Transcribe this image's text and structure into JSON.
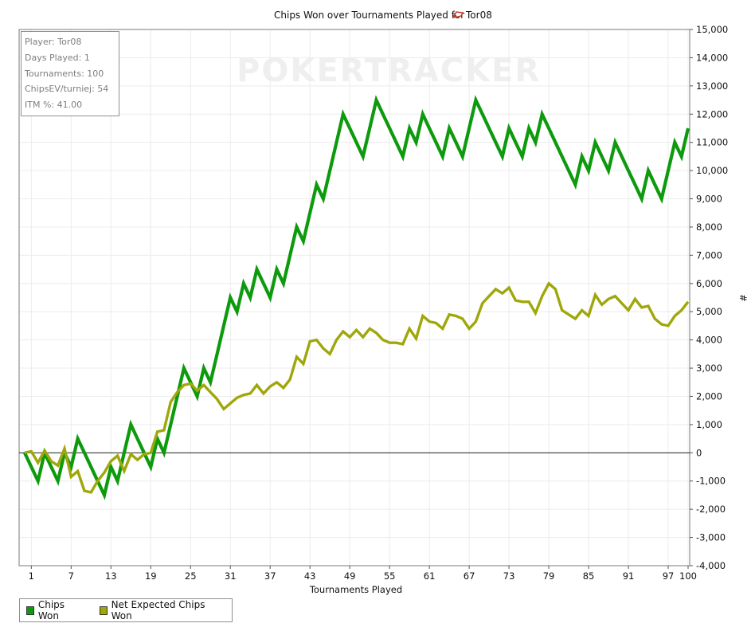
{
  "title": "Chips Won over Tournaments Played for",
  "player_name": "Tor08",
  "watermark": "POKERTRACKER",
  "stats": [
    "Player: Tor08",
    "Days Played: 1",
    "Tournaments: 100",
    "ChipsEV/turniej: 54",
    "ITM %: 41.00"
  ],
  "legend": [
    {
      "label": "Chips Won",
      "color": "#0d9a0d"
    },
    {
      "label": "Net Expected Chips Won",
      "color": "#9fa70b"
    }
  ],
  "chart_data": {
    "type": "line",
    "xlabel": "Tournaments Played",
    "ylabel": "#",
    "xlim": [
      0,
      100
    ],
    "ylim": [
      -4000,
      15000
    ],
    "x_ticks": [
      1,
      7,
      13,
      19,
      25,
      31,
      37,
      43,
      49,
      55,
      61,
      67,
      73,
      79,
      85,
      91,
      97,
      100
    ],
    "y_ticks": [
      -4000,
      -3000,
      -2000,
      -1000,
      0,
      1000,
      2000,
      3000,
      4000,
      5000,
      6000,
      7000,
      8000,
      9000,
      10000,
      11000,
      12000,
      13000,
      14000,
      15000
    ],
    "y_tick_labels": [
      "-4,000",
      "-3,000",
      "-2,000",
      "-1,000",
      "0",
      "1,000",
      "2,000",
      "3,000",
      "4,000",
      "5,000",
      "6,000",
      "7,000",
      "8,000",
      "9,000",
      "10,000",
      "11,000",
      "12,000",
      "13,000",
      "14,000",
      "15,000"
    ],
    "series": [
      {
        "name": "Chips Won",
        "color": "#0d9a0d",
        "points": [
          [
            0,
            0
          ],
          [
            1,
            -500
          ],
          [
            2,
            -1000
          ],
          [
            3,
            0
          ],
          [
            4,
            -500
          ],
          [
            5,
            -1000
          ],
          [
            6,
            0
          ],
          [
            7,
            -500
          ],
          [
            8,
            500
          ],
          [
            9,
            0
          ],
          [
            10,
            -500
          ],
          [
            11,
            -1000
          ],
          [
            12,
            -1500
          ],
          [
            13,
            -500
          ],
          [
            14,
            -1000
          ],
          [
            15,
            0
          ],
          [
            16,
            1000
          ],
          [
            17,
            500
          ],
          [
            18,
            0
          ],
          [
            19,
            -500
          ],
          [
            20,
            500
          ],
          [
            21,
            0
          ],
          [
            22,
            1000
          ],
          [
            23,
            2000
          ],
          [
            24,
            3000
          ],
          [
            25,
            2500
          ],
          [
            26,
            2000
          ],
          [
            27,
            3000
          ],
          [
            28,
            2500
          ],
          [
            29,
            3500
          ],
          [
            30,
            4500
          ],
          [
            31,
            5500
          ],
          [
            32,
            5000
          ],
          [
            33,
            6000
          ],
          [
            34,
            5500
          ],
          [
            35,
            6500
          ],
          [
            36,
            6000
          ],
          [
            37,
            5500
          ],
          [
            38,
            6500
          ],
          [
            39,
            6000
          ],
          [
            40,
            7000
          ],
          [
            41,
            8000
          ],
          [
            42,
            7500
          ],
          [
            43,
            8500
          ],
          [
            44,
            9500
          ],
          [
            45,
            9000
          ],
          [
            46,
            10000
          ],
          [
            47,
            11000
          ],
          [
            48,
            12000
          ],
          [
            49,
            11500
          ],
          [
            50,
            11000
          ],
          [
            51,
            10500
          ],
          [
            52,
            11500
          ],
          [
            53,
            12500
          ],
          [
            54,
            12000
          ],
          [
            55,
            11500
          ],
          [
            56,
            11000
          ],
          [
            57,
            10500
          ],
          [
            58,
            11500
          ],
          [
            59,
            11000
          ],
          [
            60,
            12000
          ],
          [
            61,
            11500
          ],
          [
            62,
            11000
          ],
          [
            63,
            10500
          ],
          [
            64,
            11500
          ],
          [
            65,
            11000
          ],
          [
            66,
            10500
          ],
          [
            67,
            11500
          ],
          [
            68,
            12500
          ],
          [
            69,
            12000
          ],
          [
            70,
            11500
          ],
          [
            71,
            11000
          ],
          [
            72,
            10500
          ],
          [
            73,
            11500
          ],
          [
            74,
            11000
          ],
          [
            75,
            10500
          ],
          [
            76,
            11500
          ],
          [
            77,
            11000
          ],
          [
            78,
            12000
          ],
          [
            79,
            11500
          ],
          [
            80,
            11000
          ],
          [
            81,
            10500
          ],
          [
            82,
            10000
          ],
          [
            83,
            9500
          ],
          [
            84,
            10500
          ],
          [
            85,
            10000
          ],
          [
            86,
            11000
          ],
          [
            87,
            10500
          ],
          [
            88,
            10000
          ],
          [
            89,
            11000
          ],
          [
            90,
            10500
          ],
          [
            91,
            10000
          ],
          [
            92,
            9500
          ],
          [
            93,
            9000
          ],
          [
            94,
            10000
          ],
          [
            95,
            9500
          ],
          [
            96,
            9000
          ],
          [
            97,
            10000
          ],
          [
            98,
            11000
          ],
          [
            99,
            10500
          ],
          [
            100,
            11500
          ]
        ]
      },
      {
        "name": "Net Expected Chips Won",
        "color": "#9fa70b",
        "points": [
          [
            0,
            0
          ],
          [
            1,
            50
          ],
          [
            2,
            -350
          ],
          [
            3,
            80
          ],
          [
            4,
            -300
          ],
          [
            5,
            -450
          ],
          [
            6,
            150
          ],
          [
            7,
            -850
          ],
          [
            8,
            -650
          ],
          [
            9,
            -1350
          ],
          [
            10,
            -1400
          ],
          [
            11,
            -1000
          ],
          [
            12,
            -700
          ],
          [
            13,
            -300
          ],
          [
            14,
            -100
          ],
          [
            15,
            -650
          ],
          [
            16,
            -50
          ],
          [
            17,
            -250
          ],
          [
            18,
            -50
          ],
          [
            19,
            0
          ],
          [
            20,
            750
          ],
          [
            21,
            800
          ],
          [
            22,
            1800
          ],
          [
            23,
            2150
          ],
          [
            24,
            2400
          ],
          [
            25,
            2450
          ],
          [
            26,
            2200
          ],
          [
            27,
            2400
          ],
          [
            28,
            2150
          ],
          [
            29,
            1900
          ],
          [
            30,
            1550
          ],
          [
            31,
            1750
          ],
          [
            32,
            1950
          ],
          [
            33,
            2050
          ],
          [
            34,
            2100
          ],
          [
            35,
            2400
          ],
          [
            36,
            2100
          ],
          [
            37,
            2350
          ],
          [
            38,
            2500
          ],
          [
            39,
            2300
          ],
          [
            40,
            2600
          ],
          [
            41,
            3400
          ],
          [
            42,
            3150
          ],
          [
            43,
            3950
          ],
          [
            44,
            4000
          ],
          [
            45,
            3700
          ],
          [
            46,
            3500
          ],
          [
            47,
            4000
          ],
          [
            48,
            4300
          ],
          [
            49,
            4100
          ],
          [
            50,
            4350
          ],
          [
            51,
            4100
          ],
          [
            52,
            4400
          ],
          [
            53,
            4250
          ],
          [
            54,
            4000
          ],
          [
            55,
            3900
          ],
          [
            56,
            3900
          ],
          [
            57,
            3850
          ],
          [
            58,
            4400
          ],
          [
            59,
            4050
          ],
          [
            60,
            4850
          ],
          [
            61,
            4650
          ],
          [
            62,
            4600
          ],
          [
            63,
            4400
          ],
          [
            64,
            4900
          ],
          [
            65,
            4850
          ],
          [
            66,
            4750
          ],
          [
            67,
            4400
          ],
          [
            68,
            4650
          ],
          [
            69,
            5300
          ],
          [
            70,
            5550
          ],
          [
            71,
            5800
          ],
          [
            72,
            5650
          ],
          [
            73,
            5850
          ],
          [
            74,
            5400
          ],
          [
            75,
            5350
          ],
          [
            76,
            5350
          ],
          [
            77,
            4950
          ],
          [
            78,
            5550
          ],
          [
            79,
            6000
          ],
          [
            80,
            5800
          ],
          [
            81,
            5050
          ],
          [
            82,
            4900
          ],
          [
            83,
            4750
          ],
          [
            84,
            5050
          ],
          [
            85,
            4850
          ],
          [
            86,
            5600
          ],
          [
            87,
            5250
          ],
          [
            88,
            5450
          ],
          [
            89,
            5550
          ],
          [
            90,
            5300
          ],
          [
            91,
            5050
          ],
          [
            92,
            5450
          ],
          [
            93,
            5150
          ],
          [
            94,
            5200
          ],
          [
            95,
            4750
          ],
          [
            96,
            4550
          ],
          [
            97,
            4500
          ],
          [
            98,
            4850
          ],
          [
            99,
            5050
          ],
          [
            100,
            5350
          ]
        ]
      }
    ]
  }
}
